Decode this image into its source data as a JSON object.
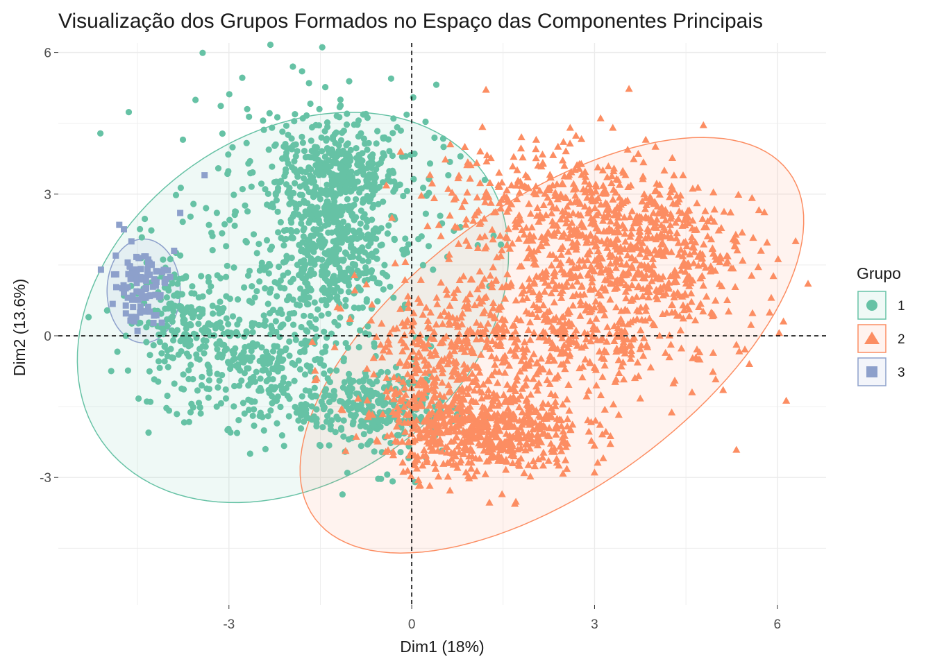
{
  "chart_data": {
    "type": "scatter",
    "title": "Visualização dos Grupos Formados no Espaço das Componentes Principais",
    "xlabel": "Dim1 (18%)",
    "ylabel": "Dim2 (13.6%)",
    "xlim": [
      -5.8,
      6.8
    ],
    "ylim": [
      -5.7,
      6.2
    ],
    "x_ticks": [
      -3,
      0,
      3,
      6
    ],
    "x_tick_labels": [
      "-3",
      "0",
      "3",
      "6"
    ],
    "y_ticks": [
      -3,
      0,
      3,
      6
    ],
    "y_tick_labels": [
      "-3",
      "0",
      "3",
      "6"
    ],
    "grid": true,
    "reference_lines": {
      "x": 0,
      "y": 0,
      "style": "dashed"
    },
    "legend": {
      "title": "Grupo",
      "position": "right",
      "entries": [
        {
          "label": "1",
          "shape": "circle",
          "color": "#66C2A5"
        },
        {
          "label": "2",
          "shape": "triangle",
          "color": "#FC8D62"
        },
        {
          "label": "3",
          "shape": "square",
          "color": "#8DA0CB"
        }
      ]
    },
    "series": [
      {
        "name": "1",
        "shape": "circle",
        "color": "#66C2A5",
        "ellipse": {
          "cx": -1.95,
          "cy": 0.6,
          "rx": 4.4,
          "ry": 3.2,
          "angle_deg": 60
        },
        "clusters": [
          {
            "x": -1.2,
            "y": 3.3,
            "sx": 0.5,
            "sy": 0.6,
            "n": 380
          },
          {
            "x": -1.3,
            "y": 1.5,
            "sx": 0.5,
            "sy": 0.5,
            "n": 260
          },
          {
            "x": -2.5,
            "y": -0.5,
            "sx": 0.8,
            "sy": 0.7,
            "n": 320
          },
          {
            "x": -3.8,
            "y": 0.3,
            "sx": 0.4,
            "sy": 0.6,
            "n": 160
          },
          {
            "x": -0.5,
            "y": -1.6,
            "sx": 0.5,
            "sy": 0.6,
            "n": 170
          },
          {
            "x": -1.8,
            "y": 2.5,
            "sx": 1.1,
            "sy": 1.4,
            "n": 330
          },
          {
            "x": -1.0,
            "y": -1.6,
            "sx": 1.0,
            "sy": 0.3,
            "n": 120
          }
        ],
        "points": [
          [
            -1.95,
            5.7
          ],
          [
            -1.8,
            5.6
          ],
          [
            -2.7,
            4.8
          ],
          [
            -0.1,
            3.8
          ],
          [
            0.8,
            3.8
          ],
          [
            -3.8,
            1.7
          ],
          [
            -4.4,
            1.0
          ],
          [
            -0.3,
            4.6
          ],
          [
            0.6,
            3.4
          ],
          [
            0.8,
            2.3
          ],
          [
            0.35,
            1.4
          ],
          [
            -3.2,
            -1.5
          ],
          [
            -2.4,
            -2.4
          ],
          [
            1.2,
            3.3
          ]
        ]
      },
      {
        "name": "2",
        "shape": "triangle",
        "color": "#FC8D62",
        "ellipse": {
          "cx": 2.3,
          "cy": -0.2,
          "rx": 5.4,
          "ry": 2.7,
          "angle_deg": 48
        },
        "clusters": [
          {
            "x": 3.2,
            "y": 2.0,
            "sx": 1.0,
            "sy": 0.9,
            "n": 620
          },
          {
            "x": 1.2,
            "y": -2.0,
            "sx": 0.8,
            "sy": 0.5,
            "n": 600
          },
          {
            "x": 2.0,
            "y": 0.0,
            "sx": 1.3,
            "sy": 0.8,
            "n": 520
          },
          {
            "x": 0.4,
            "y": -0.8,
            "sx": 0.5,
            "sy": 0.8,
            "n": 200
          },
          {
            "x": 4.3,
            "y": 1.5,
            "sx": 0.6,
            "sy": 0.8,
            "n": 140
          },
          {
            "x": 2.0,
            "y": 3.0,
            "sx": 1.0,
            "sy": 0.6,
            "n": 150
          }
        ],
        "points": [
          [
            6.3,
            2.0
          ],
          [
            6.1,
            0.3
          ],
          [
            5.9,
            0.8
          ],
          [
            3.1,
            4.6
          ],
          [
            2.6,
            4.4
          ],
          [
            1.8,
            4.2
          ],
          [
            2.4,
            4.0
          ],
          [
            3.3,
            4.4
          ],
          [
            4.0,
            4.0
          ],
          [
            4.6,
            -1.2
          ],
          [
            4.7,
            -0.5
          ],
          [
            3.0,
            -2.9
          ],
          [
            0.75,
            -2.8
          ],
          [
            5.3,
            1.9
          ]
        ]
      },
      {
        "name": "3",
        "shape": "square",
        "color": "#8DA0CB",
        "ellipse": {
          "cx": -4.4,
          "cy": 0.95,
          "rx": 0.6,
          "ry": 1.1,
          "angle_deg": 0
        },
        "clusters": [
          {
            "x": -4.45,
            "y": 1.1,
            "sx": 0.22,
            "sy": 0.38,
            "n": 90
          }
        ],
        "points": [
          [
            -3.4,
            3.4
          ],
          [
            -3.8,
            2.6
          ],
          [
            -4.8,
            2.35
          ],
          [
            -5.1,
            1.4
          ],
          [
            -4.6,
            2.0
          ],
          [
            -3.9,
            1.8
          ],
          [
            -4.85,
            1.3
          ],
          [
            -4.6,
            0.4
          ],
          [
            -4.5,
            0.1
          ]
        ]
      }
    ]
  }
}
